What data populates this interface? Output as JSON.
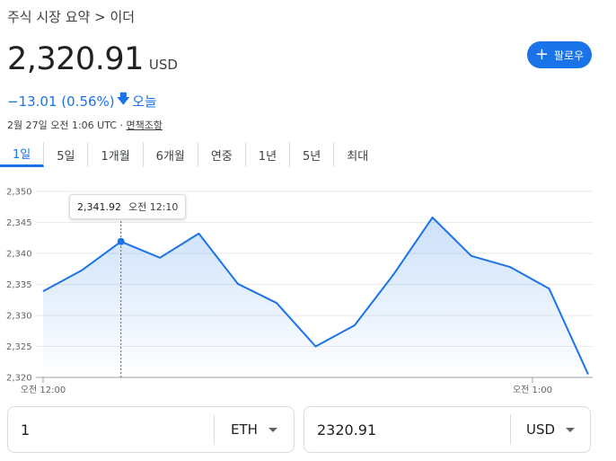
{
  "breadcrumb": "주식 시장 요약 > 이더",
  "price": "2,320.91",
  "currency": "USD",
  "follow_label": "팔로우",
  "change": "−13.01 (0.56%)",
  "change_period": "오늘",
  "timestamp": "2월 27일 오전 1:06 UTC",
  "disclaimer": "면책조항",
  "tabs": [
    "1일",
    "5일",
    "1개월",
    "6개월",
    "연중",
    "1년",
    "5년",
    "최대"
  ],
  "active_tab": "1일",
  "tooltip": {
    "value": "2,341.92",
    "time": "오전 12:10"
  },
  "converter": {
    "from_value": "1",
    "from_unit": "ETH",
    "to_value": "2320.91",
    "to_unit": "USD"
  },
  "colors": {
    "accent": "#1a73e8",
    "line": "#1a73e8"
  },
  "chart_data": {
    "type": "area",
    "y_ticks": [
      "2,350",
      "2,345",
      "2,340",
      "2,335",
      "2,330",
      "2,325",
      "2,320"
    ],
    "ylim": [
      2320,
      2350
    ],
    "x_labels": [
      "오전 12:00",
      "오전 1:00"
    ],
    "series": [
      {
        "values": [
          2333.9,
          2337.3,
          2341.92,
          2339.3,
          2343.2,
          2335.1,
          2332.0,
          2325.0,
          2328.4,
          2336.6,
          2345.8,
          2339.6,
          2337.8,
          2334.3,
          2320.5
        ]
      }
    ],
    "highlight_index": 2,
    "grid": true
  }
}
